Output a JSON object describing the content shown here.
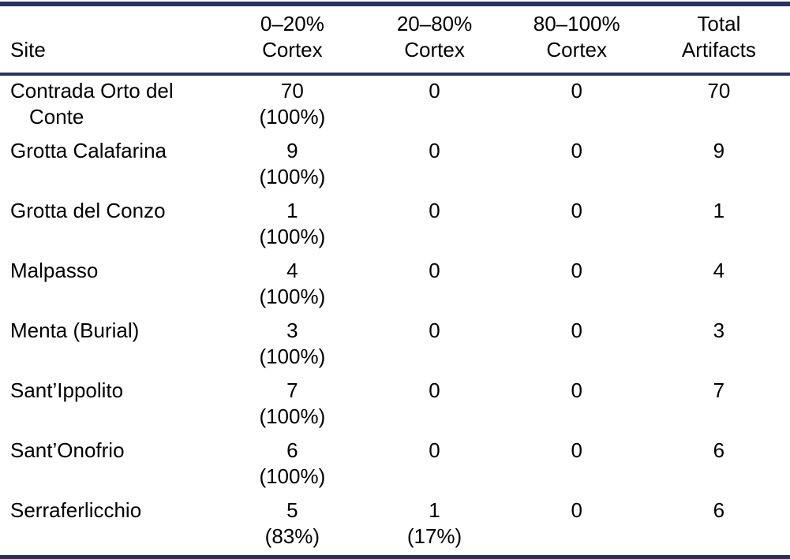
{
  "colors": {
    "rule": "#283064",
    "text": "#000000",
    "background": "#ffffff"
  },
  "header": {
    "site_label": "Site",
    "columns": [
      {
        "line1": "0–20%",
        "line2": "Cortex"
      },
      {
        "line1": "20–80%",
        "line2": "Cortex"
      },
      {
        "line1": "80–100%",
        "line2": "Cortex"
      },
      {
        "line1": "Total",
        "line2": "Artifacts"
      }
    ]
  },
  "rows": [
    {
      "site": "Contrada Orto del Conte",
      "cortex_0_20": "70",
      "cortex_0_20_pct": "(100%)",
      "cortex_20_80": "0",
      "cortex_20_80_pct": "",
      "cortex_80_100": "0",
      "cortex_80_100_pct": "",
      "total": "70"
    },
    {
      "site": "Grotta Calafarina",
      "cortex_0_20": "9",
      "cortex_0_20_pct": "(100%)",
      "cortex_20_80": "0",
      "cortex_20_80_pct": "",
      "cortex_80_100": "0",
      "cortex_80_100_pct": "",
      "total": "9"
    },
    {
      "site": "Grotta del Conzo",
      "cortex_0_20": "1",
      "cortex_0_20_pct": "(100%)",
      "cortex_20_80": "0",
      "cortex_20_80_pct": "",
      "cortex_80_100": "0",
      "cortex_80_100_pct": "",
      "total": "1"
    },
    {
      "site": "Malpasso",
      "cortex_0_20": "4",
      "cortex_0_20_pct": "(100%)",
      "cortex_20_80": "0",
      "cortex_20_80_pct": "",
      "cortex_80_100": "0",
      "cortex_80_100_pct": "",
      "total": "4"
    },
    {
      "site": "Menta (Burial)",
      "cortex_0_20": "3",
      "cortex_0_20_pct": "(100%)",
      "cortex_20_80": "0",
      "cortex_20_80_pct": "",
      "cortex_80_100": "0",
      "cortex_80_100_pct": "",
      "total": "3"
    },
    {
      "site": "Sant’Ippolito",
      "cortex_0_20": "7",
      "cortex_0_20_pct": "(100%)",
      "cortex_20_80": "0",
      "cortex_20_80_pct": "",
      "cortex_80_100": "0",
      "cortex_80_100_pct": "",
      "total": "7"
    },
    {
      "site": "Sant’Onofrio",
      "cortex_0_20": "6",
      "cortex_0_20_pct": "(100%)",
      "cortex_20_80": "0",
      "cortex_20_80_pct": "",
      "cortex_80_100": "0",
      "cortex_80_100_pct": "",
      "total": "6"
    },
    {
      "site": "Serraferlicchio",
      "cortex_0_20": "5",
      "cortex_0_20_pct": "(83%)",
      "cortex_20_80": "1",
      "cortex_20_80_pct": "(17%)",
      "cortex_80_100": "0",
      "cortex_80_100_pct": "",
      "total": "6"
    }
  ]
}
